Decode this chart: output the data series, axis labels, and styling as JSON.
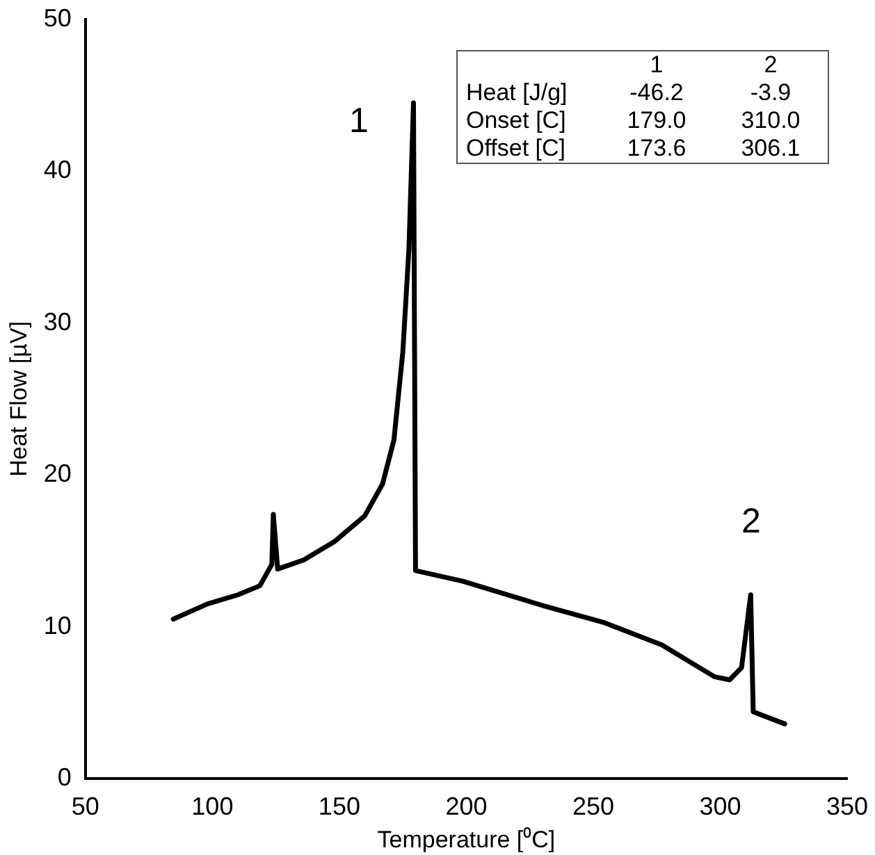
{
  "chart_data": {
    "type": "line",
    "xlabel": "Temperature [⁰C]",
    "ylabel": "Heat Flow [µV]",
    "xlim": [
      50,
      350
    ],
    "xticks": [
      50,
      100,
      150,
      200,
      250,
      300,
      350
    ],
    "ylim": [
      0,
      50
    ],
    "yticks": [
      0,
      10,
      20,
      30,
      40,
      50
    ],
    "grid": false,
    "legend": false,
    "marker": "none",
    "line_style": "solid",
    "series": [
      {
        "color": "#000000",
        "x": [
          84.6,
          98,
          110,
          118.7,
          123.4,
          124,
          125.7,
          136,
          148,
          160,
          167,
          171.5,
          175,
          177.4,
          179.2,
          180,
          198.6,
          230,
          253.8,
          277,
          297.8,
          303.7,
          308.4,
          312,
          313,
          325.4
        ],
        "values": [
          10.5,
          11.5,
          12.1,
          12.7,
          14.1,
          17.4,
          13.8,
          14.4,
          15.6,
          17.3,
          19.4,
          22.3,
          28.1,
          34.9,
          44.5,
          13.7,
          13,
          11.4,
          10.3,
          8.8,
          6.7,
          6.5,
          7.3,
          12.1,
          4.4,
          3.6
        ]
      }
    ],
    "annotations": [
      "1",
      "2",
      "1",
      "2",
      "Heat [J/g]",
      "-46.2",
      "-3.9",
      "Onset [C]",
      "179.0",
      "310.0",
      "Offset [C]",
      "173.6",
      "306.1"
    ]
  }
}
